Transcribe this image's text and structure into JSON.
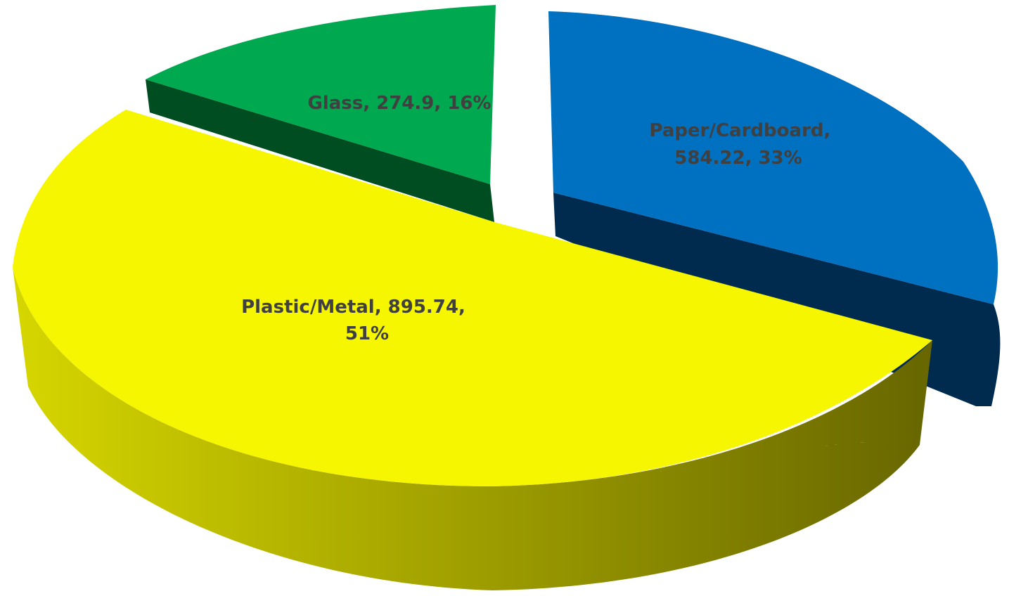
{
  "chart_data": {
    "type": "pie",
    "style": "3d-exploded",
    "title": "",
    "legend": "none",
    "slices": [
      {
        "name": "Glass",
        "value": 274.9,
        "percent": 16,
        "label_lines": [
          "Glass, 274.9, 16%"
        ],
        "color": "#00a84f",
        "side_color": "#004d22"
      },
      {
        "name": "Paper/Cardboard",
        "value": 584.22,
        "percent": 33,
        "label_lines": [
          "Paper/Cardboard,",
          "584.22, 33%"
        ],
        "color": "#0070c0",
        "side_color": "#002b4f"
      },
      {
        "name": "Plastic/Metal",
        "value": 895.74,
        "percent": 51,
        "label_lines": [
          "Plastic/Metal, 895.74,",
          "51%"
        ],
        "color": "#f6f600",
        "side_color_light": "#d6d600",
        "side_color_dark": "#676600"
      }
    ]
  }
}
